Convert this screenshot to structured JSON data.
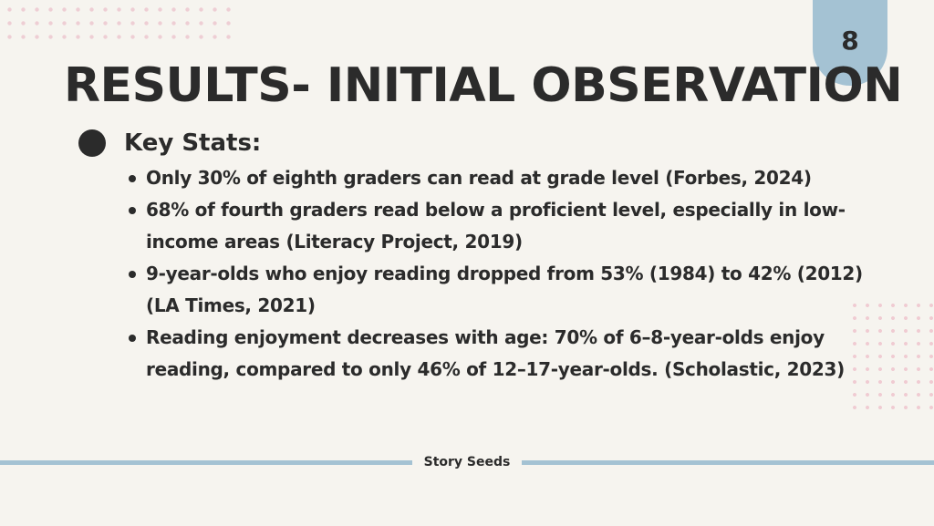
{
  "slide": {
    "page_number": "8",
    "title": "RESULTS- INITIAL OBSERVATION",
    "key_heading": "Key Stats:",
    "stats": [
      "Only 30% of eighth graders can read at grade level (Forbes, 2024)",
      "68% of fourth graders read below  a proficient level, especially in low-income areas (Literacy Project, 2019)",
      "9-year-olds who enjoy reading dropped from 53% (1984) to 42% (2012) (LA Times, 2021)",
      "Reading enjoyment decreases with age: 70% of 6–8-year-olds enjoy reading, compared to only 46% of 12–17-year-olds. (Scholastic, 2023)"
    ],
    "footer": "Story Seeds"
  },
  "colors": {
    "background": "#f6f4ef",
    "accent_blue": "#a4c2d3",
    "dots_pink": "#edc7cf",
    "text": "#2b2b2b"
  }
}
